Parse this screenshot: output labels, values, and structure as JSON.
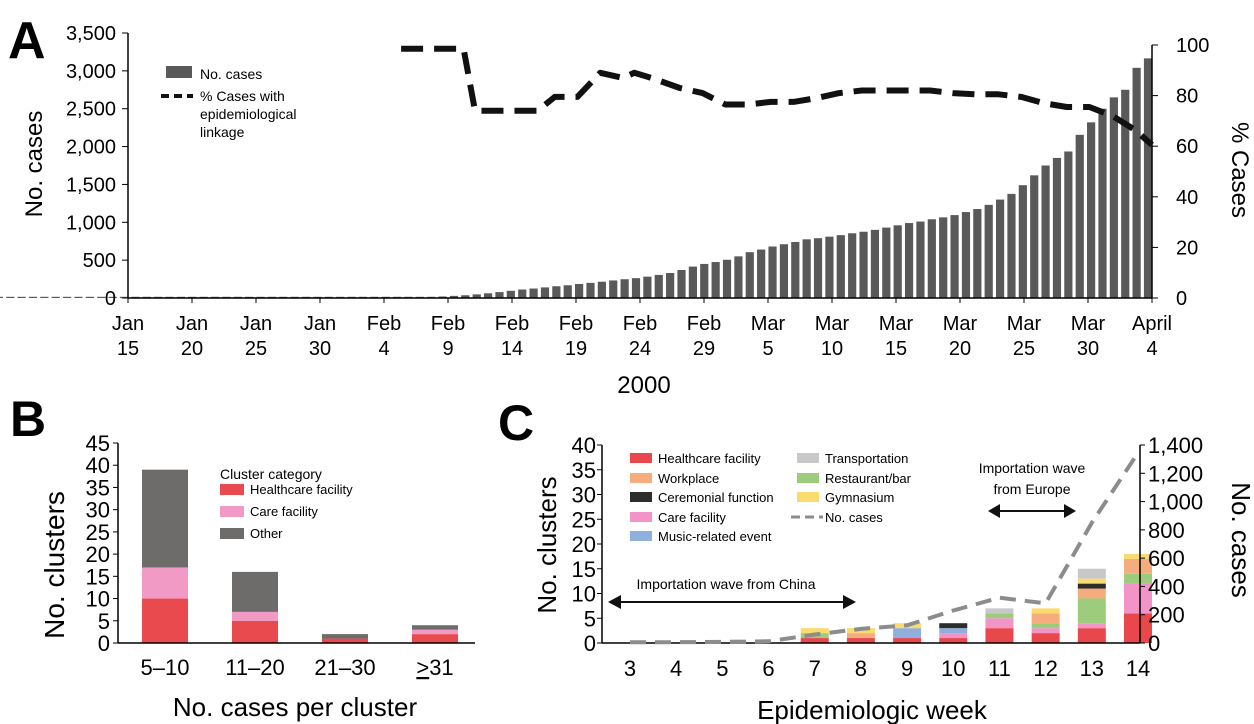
{
  "chart_data": [
    {
      "panel": "A",
      "type": "bar",
      "xlabel": "2000",
      "ylabel": "No. cases",
      "y2label": "% Cases",
      "ylim": [
        0,
        3500
      ],
      "y2lim": [
        0,
        100
      ],
      "yticks": [
        "3,500",
        "3,000",
        "2,500",
        "2,000",
        "1,500",
        "1,000",
        "500",
        "0"
      ],
      "y2ticks": [
        "100",
        "80",
        "60",
        "40",
        "20",
        "0"
      ],
      "xtick_labels": [
        [
          "Jan",
          "15"
        ],
        [
          "Jan",
          "20"
        ],
        [
          "Jan",
          "25"
        ],
        [
          "Jan",
          "30"
        ],
        [
          "Feb",
          "4"
        ],
        [
          "Feb",
          "9"
        ],
        [
          "Feb",
          "14"
        ],
        [
          "Feb",
          "19"
        ],
        [
          "Feb",
          "24"
        ],
        [
          "Feb",
          "29"
        ],
        [
          "Mar",
          "5"
        ],
        [
          "Mar",
          "10"
        ],
        [
          "Mar",
          "15"
        ],
        [
          "Mar",
          "20"
        ],
        [
          "Mar",
          "25"
        ],
        [
          "Mar",
          "30"
        ],
        [
          "April",
          "4"
        ]
      ],
      "legend": [
        "No. cases",
        "% Cases with epidemiological linkage"
      ],
      "legend_position": "top-left",
      "bar_values": [
        0,
        0,
        0,
        0,
        0,
        1,
        1,
        1,
        1,
        1,
        1,
        1,
        1,
        1,
        1,
        1,
        2,
        2,
        2,
        2,
        2,
        2,
        2,
        2,
        2,
        2,
        2,
        2,
        3,
        3,
        3,
        3,
        3,
        3,
        3,
        3,
        3,
        3,
        3,
        4,
        4,
        4,
        4,
        5,
        5,
        6,
        7,
        10,
        15,
        20,
        28,
        36,
        48,
        62,
        78,
        95,
        112,
        125,
        140,
        155,
        168,
        185,
        200,
        215,
        232,
        248,
        262,
        282,
        305,
        330,
        370,
        415,
        450,
        475,
        505,
        550,
        605,
        640,
        680,
        710,
        740,
        775,
        790,
        810,
        830,
        855,
        875,
        900,
        930,
        960,
        990,
        1010,
        1040,
        1065,
        1095,
        1135,
        1175,
        1230,
        1300,
        1375,
        1490,
        1620,
        1750,
        1850,
        1935,
        2155,
        2320,
        2500,
        2650,
        2750,
        3040,
        3165
      ],
      "line_points": [
        {
          "day": 24,
          "pct": 98.5
        },
        {
          "day": 27.5,
          "pct": 98.5
        },
        {
          "day": 29.5,
          "pct": 98.5
        },
        {
          "day": 30.5,
          "pct": 74
        },
        {
          "day": 31.5,
          "pct": 74
        },
        {
          "day": 36,
          "pct": 74
        },
        {
          "day": 37.5,
          "pct": 79.5
        },
        {
          "day": 39.5,
          "pct": 79.5
        },
        {
          "day": 41.5,
          "pct": 89
        },
        {
          "day": 43.5,
          "pct": 87
        },
        {
          "day": 44.5,
          "pct": 89
        },
        {
          "day": 46,
          "pct": 87
        },
        {
          "day": 48.5,
          "pct": 83
        },
        {
          "day": 50.5,
          "pct": 81
        },
        {
          "day": 52.5,
          "pct": 76.5
        },
        {
          "day": 54.5,
          "pct": 76.5
        },
        {
          "day": 56.5,
          "pct": 77.5
        },
        {
          "day": 58.5,
          "pct": 77.5
        },
        {
          "day": 60.5,
          "pct": 79
        },
        {
          "day": 62.5,
          "pct": 81
        },
        {
          "day": 64.5,
          "pct": 82
        },
        {
          "day": 66.5,
          "pct": 82
        },
        {
          "day": 68.5,
          "pct": 82
        },
        {
          "day": 70.5,
          "pct": 82
        },
        {
          "day": 72.5,
          "pct": 81
        },
        {
          "day": 74.5,
          "pct": 80.5
        },
        {
          "day": 76.5,
          "pct": 80.5
        },
        {
          "day": 78.5,
          "pct": 79.5
        },
        {
          "day": 80.5,
          "pct": 77
        },
        {
          "day": 82.5,
          "pct": 75.5
        },
        {
          "day": 84.5,
          "pct": 75.5
        },
        {
          "day": 86.5,
          "pct": 72
        },
        {
          "day": 88.5,
          "pct": 66.5
        },
        {
          "day": 90,
          "pct": 60.5
        }
      ]
    },
    {
      "panel": "B",
      "type": "bar",
      "stacked": true,
      "xlabel": "No. cases per cluster",
      "ylabel": "No. clusters",
      "ylim": [
        0,
        45
      ],
      "yticks": [
        "45",
        "40",
        "35",
        "30",
        "25",
        "20",
        "15",
        "10",
        "5",
        "0"
      ],
      "categories": [
        "5–10",
        "11–20",
        "21–30",
        "≥31"
      ],
      "legend_title": "Cluster category",
      "legend_position": "top-right",
      "series": [
        {
          "name": "Healthcare facility",
          "color": "#e84a4e",
          "values": [
            10,
            5,
            1,
            2
          ]
        },
        {
          "name": "Care facility",
          "color": "#f29ac6",
          "values": [
            7,
            2,
            0,
            1
          ]
        },
        {
          "name": "Other",
          "color": "#6e6b6b",
          "values": [
            22,
            9,
            1,
            1
          ]
        }
      ]
    },
    {
      "panel": "C",
      "type": "bar",
      "stacked": true,
      "xlabel": "Epidemiologic week",
      "ylabel": "No. clusters",
      "y2label": "No. cases",
      "ylim": [
        0,
        40
      ],
      "y2lim": [
        0,
        1400
      ],
      "yticks": [
        "40",
        "35",
        "30",
        "25",
        "20",
        "15",
        "10",
        "5",
        "0"
      ],
      "y2ticks": [
        "1,400",
        "1,200",
        "1,000",
        "800",
        "600",
        "400",
        "200",
        "0"
      ],
      "categories": [
        "3",
        "4",
        "5",
        "6",
        "7",
        "8",
        "9",
        "10",
        "11",
        "12",
        "13",
        "14"
      ],
      "legend_position": "top-left",
      "series": [
        {
          "name": "Healthcare facility",
          "color": "#e8474b",
          "values": [
            0,
            0,
            0,
            0,
            1,
            1,
            1,
            1,
            3,
            2,
            3,
            6
          ]
        },
        {
          "name": "Care facility",
          "color": "#f294c8",
          "values": [
            0,
            0,
            0,
            0,
            0,
            0,
            0,
            1,
            2,
            1,
            1,
            6
          ]
        },
        {
          "name": "Music-related event",
          "color": "#8fb0dd",
          "values": [
            0,
            0,
            0,
            0,
            0,
            0,
            2,
            1,
            0,
            0,
            0,
            0
          ]
        },
        {
          "name": "Restaurant/bar",
          "color": "#9ccc7c",
          "values": [
            0,
            0,
            0,
            0,
            1,
            0,
            0,
            0,
            1,
            1,
            5,
            2
          ]
        },
        {
          "name": "Workplace",
          "color": "#f5ad7e",
          "values": [
            0,
            0,
            0,
            0,
            0,
            1,
            0,
            0,
            0,
            2,
            2,
            3
          ]
        },
        {
          "name": "Ceremonial function",
          "color": "#2d2d2d",
          "values": [
            0,
            0,
            0,
            0,
            0,
            0,
            0,
            1,
            0,
            0,
            1,
            0
          ]
        },
        {
          "name": "Gymnasium",
          "color": "#fadb6e",
          "values": [
            0,
            0,
            0,
            0,
            1,
            1,
            1,
            0,
            0,
            1,
            1,
            1
          ]
        },
        {
          "name": "Transportation",
          "color": "#c8c8c8",
          "values": [
            0,
            0,
            0,
            0,
            0,
            0,
            0,
            0,
            1,
            0,
            2,
            0
          ]
        }
      ],
      "legend_order": [
        "Healthcare facility",
        "Workplace",
        "Ceremonial function",
        "Care facility",
        "Music-related event",
        "Transportation",
        "Restaurant/bar",
        "Gymnasium",
        "No. cases"
      ],
      "line": {
        "name": "No. cases",
        "values": [
          5,
          6,
          8,
          12,
          60,
          100,
          125,
          230,
          320,
          280,
          850,
          1345
        ]
      },
      "annotations": [
        "Importation wave from China",
        "Importation wave",
        "from Europe"
      ]
    }
  ],
  "panel_labels": [
    "A",
    "B",
    "C"
  ]
}
